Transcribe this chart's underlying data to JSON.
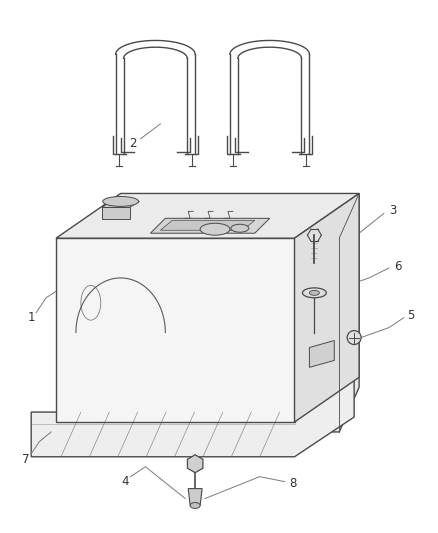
{
  "background_color": "#ffffff",
  "line_color": "#4a4a4a",
  "ann_color": "#7a7a7a",
  "text_color": "#333333",
  "figsize": [
    4.38,
    5.33
  ],
  "dpi": 100,
  "tank_face_color": "#f5f5f5",
  "tank_top_color": "#ebebeb",
  "tank_right_color": "#e0e0e0",
  "skid_color": "#eeeeee",
  "label_fontsize": 8.5
}
